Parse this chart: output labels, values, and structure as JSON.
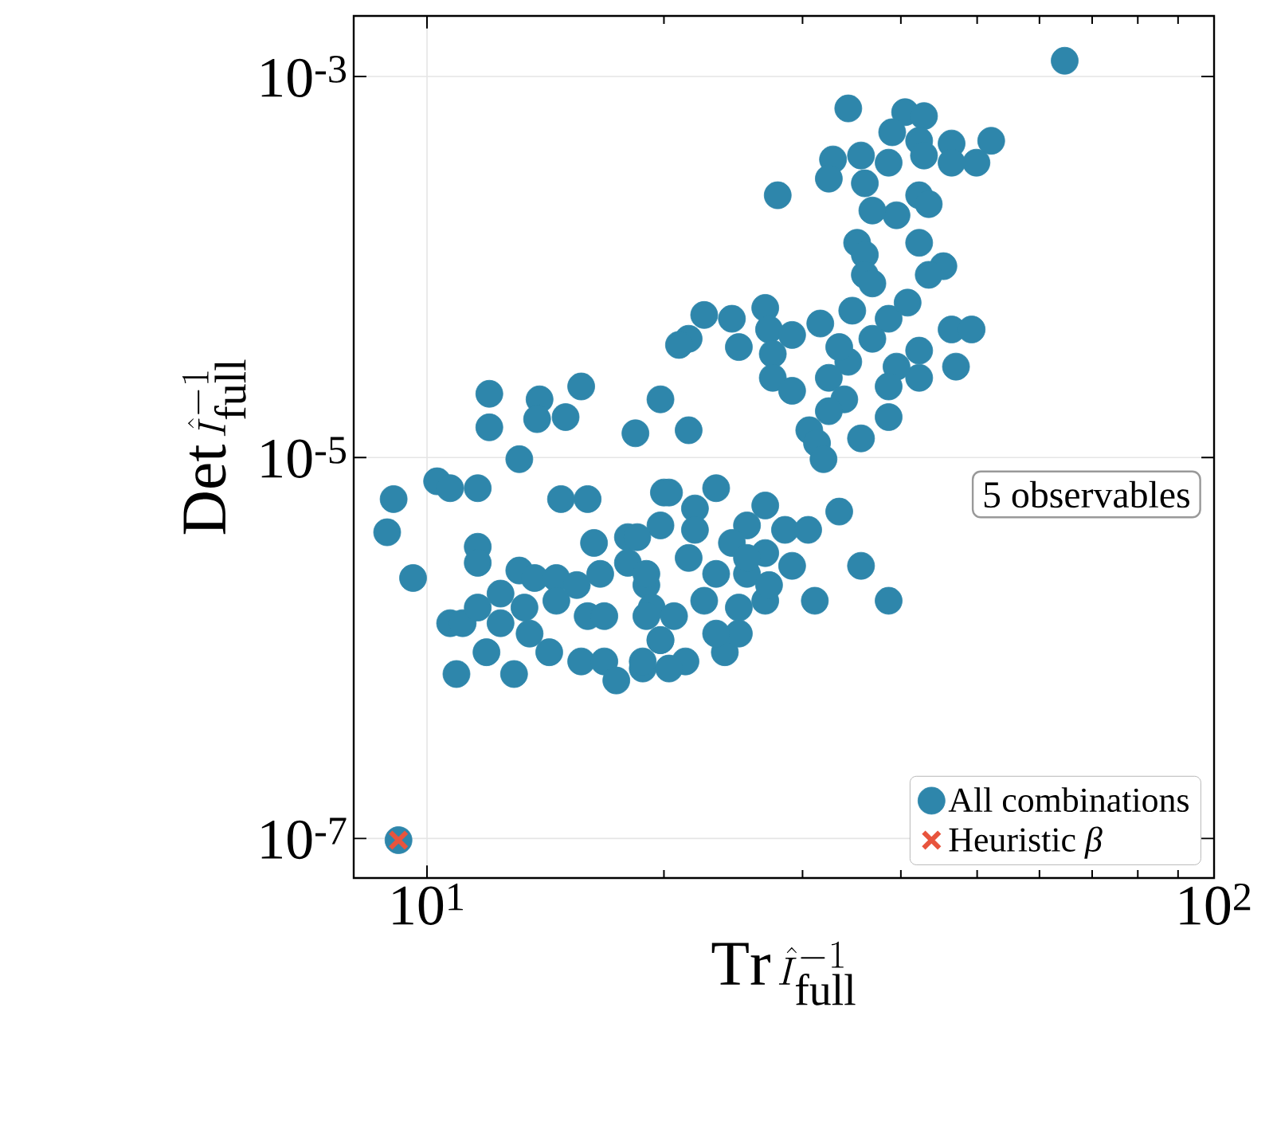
{
  "chart_data": {
    "type": "scatter",
    "log": "xy",
    "grid": true,
    "legend": "bottom right",
    "xlabel": "\\mathrm{Tr}\\,\\hat{I}_{\\mathrm{full}}^{-1}",
    "ylabel": "\\mathrm{Det}\\,\\hat{I}_{\\mathrm{full}}^{-1}",
    "xlim": [
      8.07,
      100
    ],
    "ylim": [
      6.2e-08,
      0.00208
    ],
    "xticks": [
      {
        "value": 10,
        "label": "10$^{1}$"
      },
      {
        "value": 100,
        "label": "10$^{2}$"
      }
    ],
    "yticks": [
      {
        "value": 1e-07,
        "label": "10$^{-7}$"
      },
      {
        "value": 1e-05,
        "label": "10$^{-5}$"
      },
      {
        "value": 0.001,
        "label": "10$^{-3}$"
      }
    ],
    "annotations": [
      "5 observables"
    ],
    "series": [
      {
        "name": "All combinations",
        "color": "#2e86ab",
        "marker": "circle",
        "x": [
          12.0,
          12.0,
          13.9,
          13.8,
          15.0,
          15.7,
          19.8,
          18.4,
          13.1,
          10.3,
          10.7,
          11.6,
          9.07,
          8.9,
          9.6,
          14.8,
          16.0,
          20.0,
          19.8,
          16.3,
          11.6,
          11.6,
          18.0,
          10.7,
          11.1,
          11.6,
          12.4,
          13.1,
          13.7,
          14.6,
          15.5,
          16.6,
          14.6,
          16.0,
          16.8,
          13.3,
          12.4,
          13.5,
          11.9,
          14.3,
          10.9,
          12.9,
          15.7,
          16.8,
          17.4,
          18.8,
          18.0,
          19.0,
          19.3,
          19.8,
          20.3,
          23.3,
          21.9,
          26.9,
          25.5,
          28.5,
          30.5,
          33.4,
          35.6,
          38.6,
          31.1,
          29.1,
          26.9,
          24.4,
          21.9,
          21.5,
          23.3,
          25.5,
          26.9,
          24.9,
          22.5,
          20.6,
          19.0,
          19.0,
          18.5,
          19.8,
          21.3,
          23.9,
          24.9,
          23.3,
          18.8,
          20.3,
          27.2,
          25.5,
          35.2,
          36.0,
          42.2,
          45.3,
          43.4,
          36.0,
          36.8,
          22.5,
          21.5,
          20.9,
          24.4,
          24.9,
          26.9,
          27.2,
          29.1,
          27.5,
          27.5,
          29.1,
          31.6,
          34.7,
          38.6,
          40.8,
          46.4,
          49.2,
          47.0,
          42.2,
          42.2,
          39.5,
          38.6,
          38.6,
          36.8,
          34.3,
          32.4,
          33.4,
          33.9,
          32.4,
          30.6,
          31.3,
          31.9,
          35.6,
          21.5,
          64.6,
          52.1,
          34.3,
          40.5,
          42.8,
          39.0,
          42.2,
          46.4,
          49.9,
          46.4,
          42.8,
          38.6,
          35.6,
          32.8,
          32.4,
          36.0,
          27.9,
          42.2,
          43.4,
          39.5,
          36.8,
          9.2
        ],
        "values": [
          2.16e-05,
          1.44e-05,
          2.02e-05,
          1.59e-05,
          1.63e-05,
          2.36e-05,
          2.02e-05,
          1.34e-05,
          9.8e-06,
          7.5e-06,
          6.9e-06,
          6.9e-06,
          6.05e-06,
          4.05e-06,
          2.33e-06,
          6.05e-06,
          6.05e-06,
          6.55e-06,
          4.4e-06,
          3.56e-06,
          3.4e-06,
          2.8e-06,
          3.82e-06,
          1.35e-06,
          1.35e-06,
          1.63e-06,
          1.93e-06,
          2.55e-06,
          2.33e-06,
          2.33e-06,
          2.14e-06,
          2.45e-06,
          1.77e-06,
          1.47e-06,
          1.47e-06,
          1.63e-06,
          1.35e-06,
          1.19e-06,
          9.5e-07,
          9.5e-07,
          7.3e-07,
          7.3e-07,
          8.5e-07,
          8.5e-07,
          6.75e-07,
          7.8e-07,
          2.8e-06,
          2.14e-06,
          1.63e-06,
          1.1e-06,
          6.55e-06,
          6.9e-06,
          5.4e-06,
          5.6e-06,
          4.4e-06,
          4.17e-06,
          4.17e-06,
          5.2e-06,
          2.7e-06,
          1.77e-06,
          1.77e-06,
          2.7e-06,
          3.15e-06,
          3.56e-06,
          4.17e-06,
          2.97e-06,
          2.45e-06,
          2.45e-06,
          1.77e-06,
          1.63e-06,
          1.77e-06,
          1.47e-06,
          1.47e-06,
          2.45e-06,
          3.82e-06,
          1.1e-06,
          8.5e-07,
          9.5e-07,
          1.19e-06,
          1.19e-06,
          8.5e-07,
          7.8e-07,
          2.14e-06,
          2.97e-06,
          0.000134,
          0.000116,
          0.000134,
          0.000101,
          9.1e-05,
          9.1e-05,
          8.2e-05,
          5.6e-05,
          4.2e-05,
          3.9e-05,
          5.35e-05,
          3.8e-05,
          6.1e-05,
          4.7e-05,
          4.4e-05,
          3.5e-05,
          2.62e-05,
          2.24e-05,
          5.05e-05,
          5.9e-05,
          5.35e-05,
          6.5e-05,
          4.7e-05,
          4.7e-05,
          3e-05,
          3.64e-05,
          2.62e-05,
          3e-05,
          2.36e-05,
          1.63e-05,
          4.2e-05,
          3.18e-05,
          2.62e-05,
          3.8e-05,
          2.02e-05,
          1.75e-05,
          1.39e-05,
          1.19e-05,
          9.8e-06,
          1.26e-05,
          1.39e-05,
          0.00121,
          0.00046,
          0.00068,
          0.00065,
          0.00062,
          0.00051,
          0.00046,
          0.000445,
          0.000353,
          0.000353,
          0.000385,
          0.000353,
          0.000385,
          0.000367,
          0.000291,
          0.000275,
          0.000238,
          0.000238,
          0.000214,
          0.000187,
          0.000198,
          9.8e-08
        ]
      },
      {
        "name": "Heuristic *β*",
        "color": "#e8543d",
        "marker": "cross",
        "x": [
          9.2
        ],
        "values": [
          9.8e-08
        ]
      }
    ]
  }
}
